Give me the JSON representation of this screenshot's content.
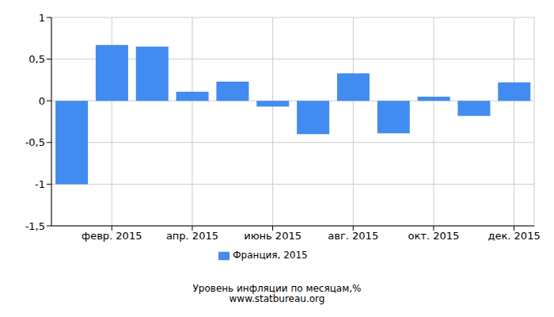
{
  "chart_data": {
    "type": "bar",
    "title": "Уровень инфляции по месяцам,%",
    "subtitle": "www.statbureau.org",
    "categories": [
      null,
      "февр. 2015",
      null,
      "апр. 2015",
      null,
      "июнь 2015",
      null,
      "авг. 2015",
      null,
      "окт. 2015",
      null,
      "дек. 2015"
    ],
    "series": [
      {
        "name": "Франция, 2015",
        "color": "#428bf0",
        "values": [
          -1.0,
          0.67,
          0.65,
          0.11,
          0.23,
          -0.07,
          -0.4,
          0.33,
          -0.39,
          0.05,
          -0.18,
          0.22
        ]
      }
    ],
    "ylim": [
      -1.5,
      1
    ],
    "yticks": [
      {
        "value": -1.5,
        "label": "-1,5"
      },
      -1,
      {
        "value": -0.5,
        "label": "-0,5"
      },
      0,
      {
        "value": 0.5,
        "label": "0,5"
      },
      1
    ],
    "grid": true,
    "legend": "bottom"
  }
}
